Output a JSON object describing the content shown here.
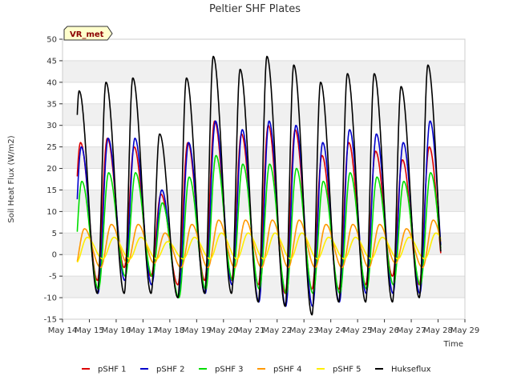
{
  "chart_data": {
    "type": "line",
    "title": "Peltier SHF Plates",
    "xlabel": "Time",
    "ylabel": "Soil Heat Flux (W/m2)",
    "badge": "VR_met",
    "ylim": [
      -15,
      50
    ],
    "yticks": [
      -15,
      -10,
      -5,
      0,
      5,
      10,
      15,
      20,
      25,
      30,
      35,
      40,
      45,
      50
    ],
    "xlim": [
      14,
      29
    ],
    "xticks": [
      14,
      15,
      16,
      17,
      18,
      19,
      20,
      21,
      22,
      23,
      24,
      25,
      26,
      27,
      28,
      29
    ],
    "xtick_labels": [
      "May 14",
      "May 15",
      "May 16",
      "May 17",
      "May 18",
      "May 19",
      "May 20",
      "May 21",
      "May 22",
      "May 23",
      "May 24",
      "May 25",
      "May 26",
      "May 27",
      "May 28",
      "May 29"
    ],
    "grid": "horizontal-bands",
    "legend_position": "bottom",
    "data_start": 14.55,
    "data_end": 28.1,
    "series": [
      {
        "name": "pSHF 1",
        "color": "#dd0000",
        "min_phase": 0.3,
        "peak_phase": 0.67,
        "daily_max": [
          26,
          27,
          25,
          14,
          26,
          31,
          28,
          30,
          29,
          23,
          26,
          24,
          22,
          25
        ],
        "daily_min": [
          -7,
          -6,
          -3,
          -5,
          -7,
          -6,
          -6,
          -7,
          -9,
          -8,
          -8,
          -7,
          -5,
          -7
        ]
      },
      {
        "name": "pSHF 2",
        "color": "#0000cc",
        "min_phase": 0.32,
        "peak_phase": 0.7,
        "daily_max": [
          25,
          27,
          27,
          15,
          26,
          31,
          29,
          31,
          30,
          26,
          29,
          28,
          26,
          31
        ],
        "daily_min": [
          -11,
          -9,
          -6,
          -7,
          -10,
          -9,
          -7,
          -11,
          -12,
          -12,
          -11,
          -9,
          -9,
          -9
        ]
      },
      {
        "name": "pSHF 3",
        "color": "#00dd00",
        "min_phase": 0.34,
        "peak_phase": 0.72,
        "daily_max": [
          17,
          19,
          19,
          12,
          18,
          23,
          21,
          21,
          20,
          17,
          19,
          18,
          17,
          19
        ],
        "daily_min": [
          -11,
          -8,
          -5,
          -5,
          -10,
          -8,
          -6,
          -8,
          -9,
          -9,
          -9,
          -8,
          -7,
          -7
        ]
      },
      {
        "name": "pSHF 4",
        "color": "#ff9900",
        "min_phase": 0.42,
        "peak_phase": 0.82,
        "daily_max": [
          6,
          7,
          7,
          5,
          7,
          8,
          8,
          8,
          8,
          7,
          7,
          7,
          6,
          8
        ],
        "daily_min": [
          -4,
          -3,
          -2,
          -2,
          -3,
          -3,
          -3,
          -3,
          -3,
          -3,
          -3,
          -3,
          -2,
          -3
        ]
      },
      {
        "name": "pSHF 5",
        "color": "#ffee00",
        "min_phase": 0.5,
        "peak_phase": 0.92,
        "daily_max": [
          4,
          4,
          4,
          3,
          4,
          5,
          5,
          5,
          5,
          4,
          4,
          4,
          4,
          5
        ],
        "daily_min": [
          -2,
          -1,
          -1,
          -1,
          -1,
          -1,
          -1,
          -1,
          -1,
          -1,
          -1,
          -1,
          -1,
          -1
        ]
      },
      {
        "name": "Hukseflux",
        "color": "#000000",
        "min_phase": 0.3,
        "peak_phase": 0.62,
        "daily_max": [
          38,
          40,
          41,
          28,
          41,
          46,
          43,
          46,
          44,
          40,
          42,
          42,
          39,
          44
        ],
        "daily_min": [
          -11,
          -9,
          -9,
          -9,
          -10,
          -9,
          -9,
          -11,
          -12,
          -14,
          -11,
          -11,
          -11,
          -10
        ]
      }
    ]
  }
}
